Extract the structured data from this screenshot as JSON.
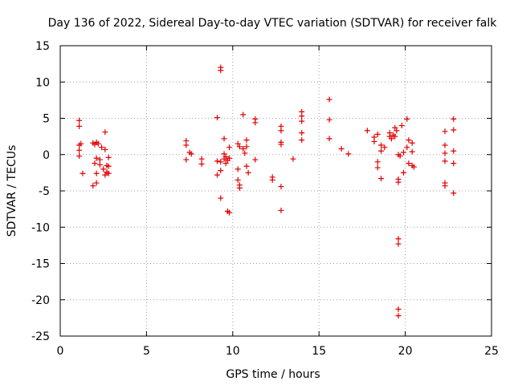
{
  "chart_data": {
    "type": "scatter",
    "title": "Day 136 of 2022, Sidereal Day-to-day VTEC variation (SDTVAR) for receiver falk",
    "xlabel": "GPS time / hours",
    "ylabel": "SDTVAR / TECUs",
    "xlim": [
      0,
      25
    ],
    "ylim": [
      -25,
      15
    ],
    "xticks": [
      0,
      5,
      10,
      15,
      20,
      25
    ],
    "yticks": [
      -25,
      -20,
      -15,
      -10,
      -5,
      0,
      5,
      10,
      15
    ],
    "xtick_labels": [
      "0",
      "5",
      "10",
      "15",
      "20",
      "25"
    ],
    "ytick_labels": [
      "-25",
      "-20",
      "-15",
      "-10",
      "-5",
      "0",
      "5",
      "10",
      "15"
    ],
    "grid": true,
    "marker": "+",
    "color": "#e00000",
    "series": [
      {
        "name": "SDTVAR",
        "points": [
          [
            1.1,
            4.7
          ],
          [
            1.1,
            3.9
          ],
          [
            1.1,
            1.3
          ],
          [
            1.1,
            0.6
          ],
          [
            1.1,
            -0.2
          ],
          [
            1.2,
            1.5
          ],
          [
            1.3,
            -2.6
          ],
          [
            1.9,
            1.6
          ],
          [
            1.9,
            -4.3
          ],
          [
            2.0,
            1.4
          ],
          [
            2.0,
            -1.2
          ],
          [
            2.1,
            1.7
          ],
          [
            2.1,
            -0.5
          ],
          [
            2.1,
            -2.6
          ],
          [
            2.1,
            -3.9
          ],
          [
            2.2,
            1.5
          ],
          [
            2.3,
            -0.7
          ],
          [
            2.3,
            -1.4
          ],
          [
            2.4,
            1.0
          ],
          [
            2.5,
            -2.0
          ],
          [
            2.6,
            0.7
          ],
          [
            2.6,
            -2.8
          ],
          [
            2.6,
            3.1
          ],
          [
            2.7,
            -1.5
          ],
          [
            2.7,
            -2.4
          ],
          [
            2.8,
            -0.4
          ],
          [
            2.8,
            -1.6
          ],
          [
            2.8,
            -2.6
          ],
          [
            7.3,
            1.9
          ],
          [
            7.3,
            1.3
          ],
          [
            7.3,
            -0.7
          ],
          [
            7.5,
            0.3
          ],
          [
            7.6,
            0.1
          ],
          [
            8.2,
            -0.6
          ],
          [
            8.2,
            -1.3
          ],
          [
            9.1,
            5.1
          ],
          [
            9.1,
            -0.9
          ],
          [
            9.1,
            -2.8
          ],
          [
            9.3,
            12.0
          ],
          [
            9.3,
            11.6
          ],
          [
            9.3,
            -1.0
          ],
          [
            9.3,
            -2.2
          ],
          [
            9.3,
            -6.0
          ],
          [
            9.5,
            2.2
          ],
          [
            9.5,
            0.1
          ],
          [
            9.5,
            -0.6
          ],
          [
            9.6,
            -0.3
          ],
          [
            9.6,
            -1.2
          ],
          [
            9.7,
            -0.8
          ],
          [
            9.7,
            -7.8
          ],
          [
            9.8,
            1.0
          ],
          [
            9.8,
            -0.5
          ],
          [
            9.8,
            -8.0
          ],
          [
            10.3,
            1.5
          ],
          [
            10.3,
            -2.0
          ],
          [
            10.3,
            -3.5
          ],
          [
            10.4,
            1.1
          ],
          [
            10.4,
            -4.2
          ],
          [
            10.4,
            -4.6
          ],
          [
            10.6,
            5.5
          ],
          [
            10.6,
            0.8
          ],
          [
            10.7,
            0.2
          ],
          [
            10.8,
            2.0
          ],
          [
            10.8,
            1.1
          ],
          [
            10.8,
            -1.6
          ],
          [
            10.9,
            -2.5
          ],
          [
            11.3,
            4.9
          ],
          [
            11.3,
            4.4
          ],
          [
            11.3,
            -0.7
          ],
          [
            12.3,
            -3.1
          ],
          [
            12.3,
            -3.5
          ],
          [
            12.8,
            3.9
          ],
          [
            12.8,
            3.3
          ],
          [
            12.8,
            1.7
          ],
          [
            12.8,
            1.4
          ],
          [
            12.8,
            -4.4
          ],
          [
            12.8,
            -7.7
          ],
          [
            13.5,
            -0.6
          ],
          [
            14.0,
            5.9
          ],
          [
            14.0,
            5.3
          ],
          [
            14.0,
            4.6
          ],
          [
            14.0,
            3.0
          ],
          [
            14.0,
            2.0
          ],
          [
            15.6,
            7.6
          ],
          [
            15.6,
            4.8
          ],
          [
            15.6,
            2.2
          ],
          [
            16.3,
            0.8
          ],
          [
            16.7,
            0.1
          ],
          [
            17.8,
            3.3
          ],
          [
            18.2,
            2.4
          ],
          [
            18.2,
            1.8
          ],
          [
            18.4,
            2.8
          ],
          [
            18.4,
            -1.0
          ],
          [
            18.4,
            -1.8
          ],
          [
            18.6,
            1.3
          ],
          [
            18.6,
            0.5
          ],
          [
            18.6,
            -3.3
          ],
          [
            18.8,
            1.0
          ],
          [
            19.1,
            3.0
          ],
          [
            19.1,
            2.5
          ],
          [
            19.2,
            2.2
          ],
          [
            19.3,
            2.7
          ],
          [
            19.4,
            3.7
          ],
          [
            19.4,
            2.5
          ],
          [
            19.5,
            3.3
          ],
          [
            19.6,
            0.0
          ],
          [
            19.6,
            -3.4
          ],
          [
            19.6,
            -3.8
          ],
          [
            19.6,
            -11.6
          ],
          [
            19.6,
            -12.3
          ],
          [
            19.6,
            -21.3
          ],
          [
            19.6,
            -22.2
          ],
          [
            19.7,
            -0.2
          ],
          [
            19.8,
            4.0
          ],
          [
            19.9,
            0.3
          ],
          [
            19.9,
            -2.5
          ],
          [
            20.1,
            4.9
          ],
          [
            20.1,
            1.0
          ],
          [
            20.2,
            2.0
          ],
          [
            20.2,
            -1.2
          ],
          [
            20.4,
            1.6
          ],
          [
            20.4,
            0.4
          ],
          [
            20.4,
            -1.5
          ],
          [
            20.5,
            -1.7
          ],
          [
            22.3,
            3.2
          ],
          [
            22.3,
            1.3
          ],
          [
            22.3,
            0.2
          ],
          [
            22.3,
            -0.9
          ],
          [
            22.3,
            -3.9
          ],
          [
            22.3,
            -4.3
          ],
          [
            22.8,
            4.9
          ],
          [
            22.8,
            3.4
          ],
          [
            22.8,
            0.5
          ],
          [
            22.8,
            -1.2
          ],
          [
            22.8,
            -5.3
          ]
        ]
      }
    ]
  }
}
